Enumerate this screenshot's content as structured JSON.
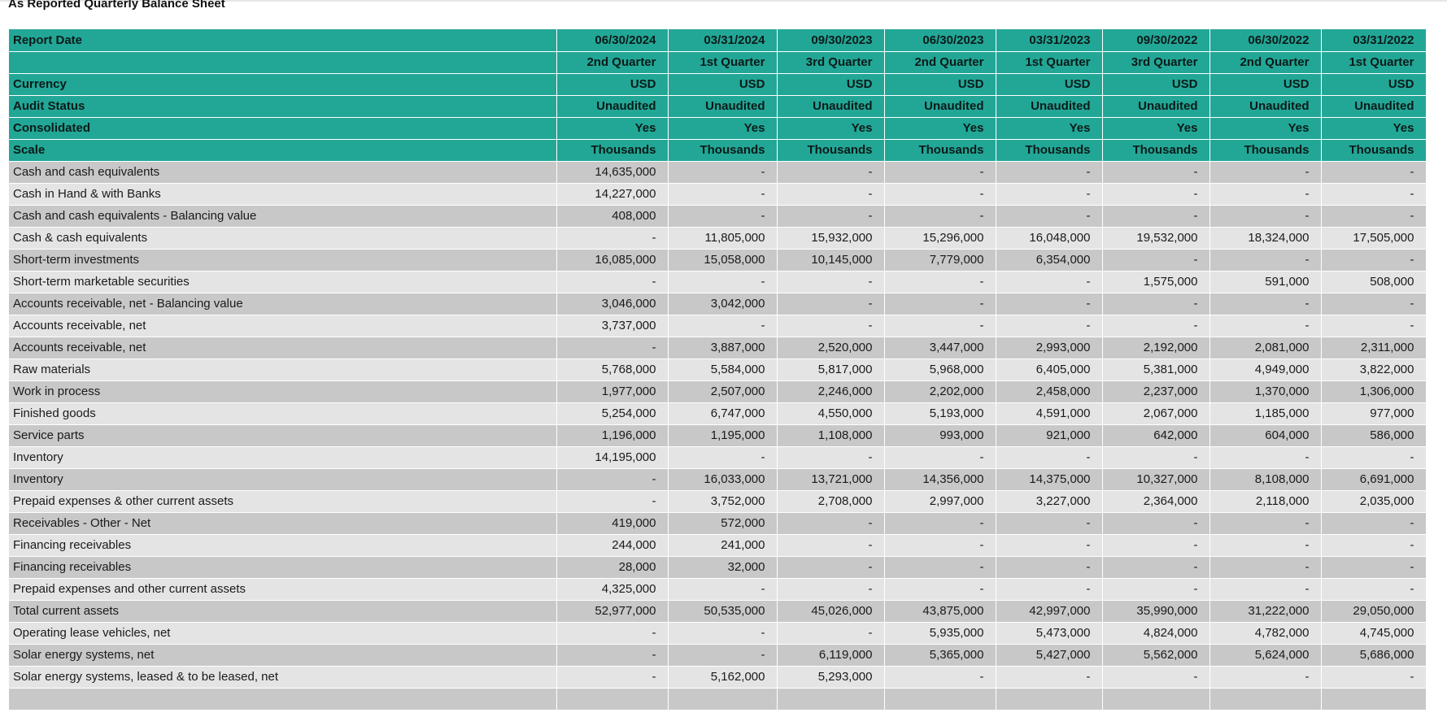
{
  "title": "As Reported Quarterly Balance Sheet",
  "header_rows": [
    {
      "label": "Report Date",
      "values": [
        "06/30/2024",
        "03/31/2024",
        "09/30/2023",
        "06/30/2023",
        "03/31/2023",
        "09/30/2022",
        "06/30/2022",
        "03/31/2022"
      ]
    },
    {
      "label": "",
      "values": [
        "2nd Quarter",
        "1st Quarter",
        "3rd Quarter",
        "2nd Quarter",
        "1st Quarter",
        "3rd Quarter",
        "2nd Quarter",
        "1st Quarter"
      ]
    },
    {
      "label": "Currency",
      "values": [
        "USD",
        "USD",
        "USD",
        "USD",
        "USD",
        "USD",
        "USD",
        "USD"
      ]
    },
    {
      "label": "Audit Status",
      "values": [
        "Unaudited",
        "Unaudited",
        "Unaudited",
        "Unaudited",
        "Unaudited",
        "Unaudited",
        "Unaudited",
        "Unaudited"
      ]
    },
    {
      "label": "Consolidated",
      "values": [
        "Yes",
        "Yes",
        "Yes",
        "Yes",
        "Yes",
        "Yes",
        "Yes",
        "Yes"
      ]
    },
    {
      "label": "Scale",
      "values": [
        "Thousands",
        "Thousands",
        "Thousands",
        "Thousands",
        "Thousands",
        "Thousands",
        "Thousands",
        "Thousands"
      ]
    }
  ],
  "body_rows": [
    {
      "label": "Cash and cash equivalents",
      "values": [
        "14,635,000",
        "-",
        "-",
        "-",
        "-",
        "-",
        "-",
        "-"
      ]
    },
    {
      "label": "Cash in Hand & with Banks",
      "values": [
        "14,227,000",
        "-",
        "-",
        "-",
        "-",
        "-",
        "-",
        "-"
      ]
    },
    {
      "label": "Cash and cash equivalents - Balancing value",
      "values": [
        "408,000",
        "-",
        "-",
        "-",
        "-",
        "-",
        "-",
        "-"
      ]
    },
    {
      "label": "Cash & cash equivalents",
      "values": [
        "-",
        "11,805,000",
        "15,932,000",
        "15,296,000",
        "16,048,000",
        "19,532,000",
        "18,324,000",
        "17,505,000"
      ]
    },
    {
      "label": "Short-term investments",
      "values": [
        "16,085,000",
        "15,058,000",
        "10,145,000",
        "7,779,000",
        "6,354,000",
        "-",
        "-",
        "-"
      ]
    },
    {
      "label": "Short-term marketable securities",
      "values": [
        "-",
        "-",
        "-",
        "-",
        "-",
        "1,575,000",
        "591,000",
        "508,000"
      ]
    },
    {
      "label": "Accounts receivable, net - Balancing value",
      "values": [
        "3,046,000",
        "3,042,000",
        "-",
        "-",
        "-",
        "-",
        "-",
        "-"
      ]
    },
    {
      "label": "Accounts receivable, net",
      "values": [
        "3,737,000",
        "-",
        "-",
        "-",
        "-",
        "-",
        "-",
        "-"
      ]
    },
    {
      "label": "Accounts receivable, net",
      "values": [
        "-",
        "3,887,000",
        "2,520,000",
        "3,447,000",
        "2,993,000",
        "2,192,000",
        "2,081,000",
        "2,311,000"
      ]
    },
    {
      "label": "Raw materials",
      "values": [
        "5,768,000",
        "5,584,000",
        "5,817,000",
        "5,968,000",
        "6,405,000",
        "5,381,000",
        "4,949,000",
        "3,822,000"
      ]
    },
    {
      "label": "Work in process",
      "values": [
        "1,977,000",
        "2,507,000",
        "2,246,000",
        "2,202,000",
        "2,458,000",
        "2,237,000",
        "1,370,000",
        "1,306,000"
      ]
    },
    {
      "label": "Finished goods",
      "values": [
        "5,254,000",
        "6,747,000",
        "4,550,000",
        "5,193,000",
        "4,591,000",
        "2,067,000",
        "1,185,000",
        "977,000"
      ]
    },
    {
      "label": "Service parts",
      "values": [
        "1,196,000",
        "1,195,000",
        "1,108,000",
        "993,000",
        "921,000",
        "642,000",
        "604,000",
        "586,000"
      ]
    },
    {
      "label": "Inventory",
      "values": [
        "14,195,000",
        "-",
        "-",
        "-",
        "-",
        "-",
        "-",
        "-"
      ]
    },
    {
      "label": "Inventory",
      "values": [
        "-",
        "16,033,000",
        "13,721,000",
        "14,356,000",
        "14,375,000",
        "10,327,000",
        "8,108,000",
        "6,691,000"
      ]
    },
    {
      "label": "Prepaid expenses & other current assets",
      "values": [
        "-",
        "3,752,000",
        "2,708,000",
        "2,997,000",
        "3,227,000",
        "2,364,000",
        "2,118,000",
        "2,035,000"
      ]
    },
    {
      "label": "Receivables - Other - Net",
      "values": [
        "419,000",
        "572,000",
        "-",
        "-",
        "-",
        "-",
        "-",
        "-"
      ]
    },
    {
      "label": "Financing receivables",
      "values": [
        "244,000",
        "241,000",
        "-",
        "-",
        "-",
        "-",
        "-",
        "-"
      ]
    },
    {
      "label": "Financing receivables",
      "values": [
        "28,000",
        "32,000",
        "-",
        "-",
        "-",
        "-",
        "-",
        "-"
      ]
    },
    {
      "label": "Prepaid expenses and other current assets",
      "values": [
        "4,325,000",
        "-",
        "-",
        "-",
        "-",
        "-",
        "-",
        "-"
      ]
    },
    {
      "label": "Total current assets",
      "values": [
        "52,977,000",
        "50,535,000",
        "45,026,000",
        "43,875,000",
        "42,997,000",
        "35,990,000",
        "31,222,000",
        "29,050,000"
      ]
    },
    {
      "label": "Operating lease vehicles, net",
      "values": [
        "-",
        "-",
        "-",
        "5,935,000",
        "5,473,000",
        "4,824,000",
        "4,782,000",
        "4,745,000"
      ]
    },
    {
      "label": "Solar energy systems, net",
      "values": [
        "-",
        "-",
        "6,119,000",
        "5,365,000",
        "5,427,000",
        "5,562,000",
        "5,624,000",
        "5,686,000"
      ]
    },
    {
      "label": "Solar energy systems, leased & to be leased, net",
      "values": [
        "-",
        "5,162,000",
        "5,293,000",
        "-",
        "-",
        "-",
        "-",
        "-"
      ]
    },
    {
      "label": "",
      "values": [
        "",
        "",
        "",
        "",
        "",
        "",
        "",
        ""
      ]
    }
  ]
}
